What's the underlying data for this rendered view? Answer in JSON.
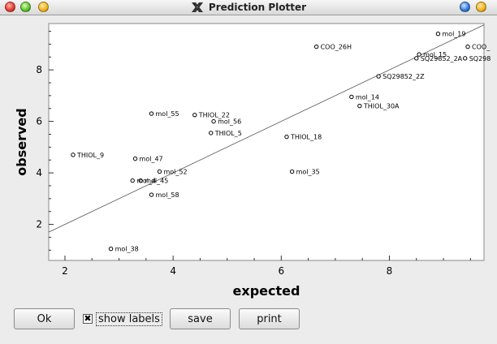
{
  "window": {
    "title": "Prediction Plotter"
  },
  "chart_data": {
    "type": "scatter",
    "xlabel": "expected",
    "ylabel": "observed",
    "xlim": [
      1.7,
      9.75
    ],
    "ylim": [
      0.6,
      9.8
    ],
    "x_ticks": [
      2,
      4,
      6,
      8
    ],
    "y_ticks": [
      2,
      4,
      6,
      8
    ],
    "fit_line": [
      [
        1.7,
        1.7
      ],
      [
        9.75,
        9.75
      ]
    ],
    "points": [
      {
        "label": "mol_19",
        "x": 8.9,
        "y": 9.4
      },
      {
        "label": "COO_",
        "x": 9.45,
        "y": 8.9
      },
      {
        "label": "COO_26H",
        "x": 6.65,
        "y": 8.9
      },
      {
        "label": "mol_15",
        "x": 8.55,
        "y": 8.6
      },
      {
        "label": "SQ29852_2A",
        "x": 8.5,
        "y": 8.45
      },
      {
        "label": "SQ298",
        "x": 9.4,
        "y": 8.45
      },
      {
        "label": "SQ29852_2Z",
        "x": 7.8,
        "y": 7.75
      },
      {
        "label": "mol_14",
        "x": 7.3,
        "y": 6.95
      },
      {
        "label": "THIOL_30A",
        "x": 7.45,
        "y": 6.6
      },
      {
        "label": "mol_55",
        "x": 3.6,
        "y": 6.3
      },
      {
        "label": "THIOL_22",
        "x": 4.4,
        "y": 6.25
      },
      {
        "label": "mol_56",
        "x": 4.75,
        "y": 6.0
      },
      {
        "label": "THIOL_5",
        "x": 4.7,
        "y": 5.55
      },
      {
        "label": "THIOL_18",
        "x": 6.1,
        "y": 5.4
      },
      {
        "label": "THIOL_9",
        "x": 2.15,
        "y": 4.7
      },
      {
        "label": "mol_47",
        "x": 3.3,
        "y": 4.55
      },
      {
        "label": "mol_52",
        "x": 3.75,
        "y": 4.05
      },
      {
        "label": "mol_35",
        "x": 6.2,
        "y": 4.05
      },
      {
        "label": "mol_45",
        "x": 3.4,
        "y": 3.7
      },
      {
        "label": "mol_4",
        "x": 3.25,
        "y": 3.7
      },
      {
        "label": "mol_58",
        "x": 3.6,
        "y": 3.15
      },
      {
        "label": "mol_38",
        "x": 2.85,
        "y": 1.05
      }
    ]
  },
  "controls": {
    "ok_label": "Ok",
    "show_labels_label": "show labels",
    "show_labels_checked": "✖",
    "save_label": "save",
    "print_label": "print"
  }
}
